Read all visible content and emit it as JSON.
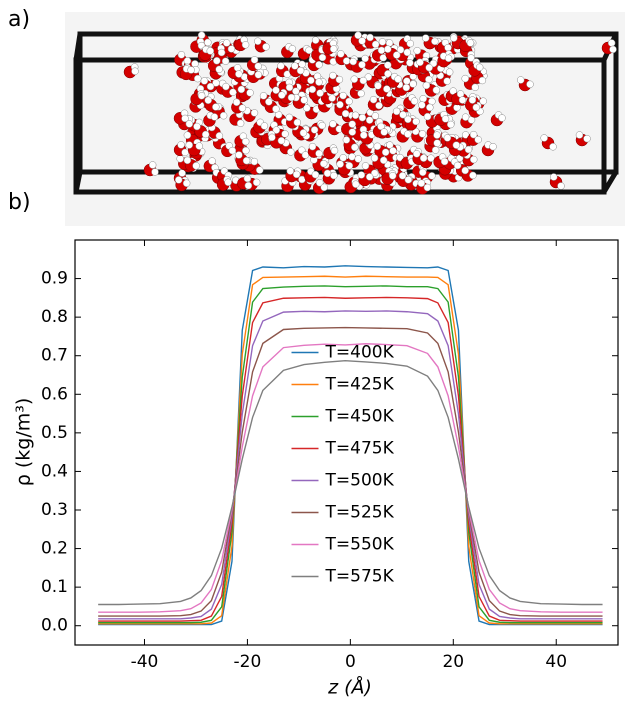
{
  "panel_labels": {
    "a": "a)",
    "b": "b)"
  },
  "chart_data": {
    "type": "line",
    "x_label": "z (Å)",
    "y_label": "ρ (kg/m³)",
    "x": [
      -49,
      -45,
      -41,
      -37,
      -33,
      -31,
      -29,
      -27,
      -25,
      -23,
      -21,
      -19,
      -17,
      -13,
      -9,
      -5,
      -1,
      3,
      7,
      11,
      15,
      17,
      19,
      21,
      23,
      25,
      27,
      29,
      31,
      33,
      37,
      41,
      45,
      49
    ],
    "series": [
      {
        "name": "T=400K",
        "color": "#1f77b4",
        "values": [
          0.003,
          0.003,
          0.003,
          0.003,
          0.003,
          0.003,
          0.003,
          0.003,
          0.012,
          0.167,
          0.766,
          0.921,
          0.93,
          0.928,
          0.931,
          0.93,
          0.933,
          0.931,
          0.93,
          0.929,
          0.928,
          0.93,
          0.921,
          0.766,
          0.167,
          0.012,
          0.003,
          0.003,
          0.003,
          0.003,
          0.003,
          0.003,
          0.003,
          0.003
        ]
      },
      {
        "name": "T=425K",
        "color": "#ff7f0e",
        "values": [
          0.005,
          0.005,
          0.005,
          0.005,
          0.005,
          0.005,
          0.005,
          0.007,
          0.026,
          0.206,
          0.704,
          0.884,
          0.903,
          0.904,
          0.905,
          0.906,
          0.904,
          0.906,
          0.905,
          0.904,
          0.904,
          0.903,
          0.884,
          0.704,
          0.206,
          0.026,
          0.007,
          0.005,
          0.005,
          0.005,
          0.005,
          0.005,
          0.005,
          0.005
        ]
      },
      {
        "name": "T=450K",
        "color": "#2ca02c",
        "values": [
          0.008,
          0.008,
          0.008,
          0.008,
          0.008,
          0.008,
          0.009,
          0.014,
          0.049,
          0.243,
          0.645,
          0.839,
          0.874,
          0.878,
          0.88,
          0.881,
          0.879,
          0.88,
          0.881,
          0.879,
          0.879,
          0.874,
          0.839,
          0.645,
          0.243,
          0.049,
          0.014,
          0.009,
          0.008,
          0.008,
          0.008,
          0.008,
          0.008,
          0.008
        ]
      },
      {
        "name": "T=475K",
        "color": "#d62728",
        "values": [
          0.012,
          0.012,
          0.012,
          0.012,
          0.012,
          0.013,
          0.014,
          0.025,
          0.076,
          0.266,
          0.596,
          0.786,
          0.837,
          0.849,
          0.85,
          0.851,
          0.849,
          0.85,
          0.851,
          0.85,
          0.848,
          0.837,
          0.786,
          0.596,
          0.266,
          0.076,
          0.025,
          0.014,
          0.013,
          0.012,
          0.012,
          0.012,
          0.012,
          0.012
        ]
      },
      {
        "name": "T=500K",
        "color": "#9467bd",
        "values": [
          0.018,
          0.018,
          0.018,
          0.018,
          0.018,
          0.02,
          0.024,
          0.043,
          0.107,
          0.284,
          0.549,
          0.726,
          0.79,
          0.813,
          0.815,
          0.814,
          0.816,
          0.815,
          0.816,
          0.814,
          0.809,
          0.79,
          0.726,
          0.549,
          0.284,
          0.107,
          0.043,
          0.024,
          0.02,
          0.018,
          0.018,
          0.018,
          0.018,
          0.018
        ]
      },
      {
        "name": "T=525K",
        "color": "#8c564b",
        "values": [
          0.025,
          0.025,
          0.025,
          0.025,
          0.026,
          0.029,
          0.038,
          0.065,
          0.139,
          0.295,
          0.502,
          0.658,
          0.732,
          0.768,
          0.771,
          0.772,
          0.773,
          0.772,
          0.771,
          0.77,
          0.759,
          0.732,
          0.658,
          0.502,
          0.295,
          0.139,
          0.065,
          0.038,
          0.029,
          0.026,
          0.025,
          0.025,
          0.025,
          0.025
        ]
      },
      {
        "name": "T=550K",
        "color": "#e377c2",
        "values": [
          0.035,
          0.035,
          0.035,
          0.036,
          0.039,
          0.044,
          0.059,
          0.094,
          0.169,
          0.301,
          0.464,
          0.596,
          0.671,
          0.721,
          0.727,
          0.73,
          0.728,
          0.731,
          0.729,
          0.726,
          0.706,
          0.671,
          0.596,
          0.464,
          0.301,
          0.169,
          0.094,
          0.059,
          0.044,
          0.039,
          0.036,
          0.035,
          0.035,
          0.035
        ]
      },
      {
        "name": "T=575K",
        "color": "#7f7f7f",
        "values": [
          0.055,
          0.055,
          0.056,
          0.057,
          0.063,
          0.072,
          0.091,
          0.13,
          0.201,
          0.308,
          0.432,
          0.54,
          0.61,
          0.662,
          0.677,
          0.683,
          0.687,
          0.684,
          0.68,
          0.673,
          0.647,
          0.61,
          0.54,
          0.432,
          0.308,
          0.201,
          0.13,
          0.091,
          0.072,
          0.063,
          0.057,
          0.056,
          0.055,
          0.055
        ]
      }
    ],
    "xlim": [
      -53.5,
      52
    ],
    "ylim": [
      -0.05,
      1.0
    ],
    "xticks": [
      -40,
      -20,
      0,
      20,
      40
    ],
    "yticks": [
      {
        "value": 0,
        "label": "0.0"
      },
      0.1,
      0.2,
      0.3,
      0.4,
      0.5,
      0.6,
      0.7,
      0.8,
      0.9
    ],
    "legend": "center",
    "grid": false
  }
}
